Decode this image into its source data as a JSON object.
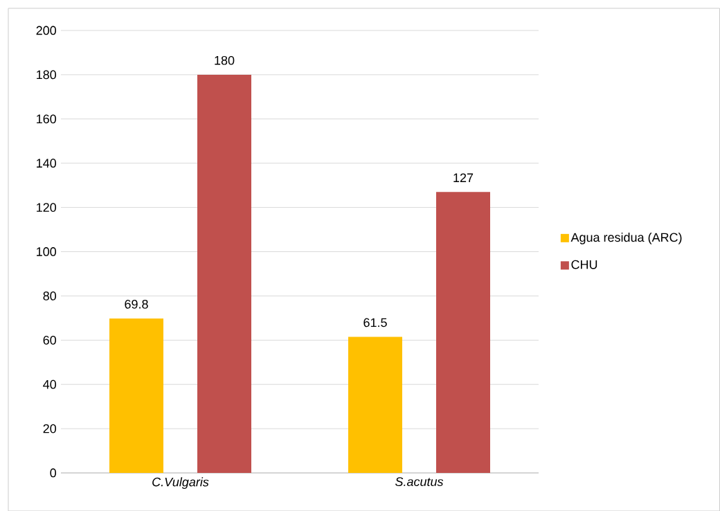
{
  "chart_data": {
    "type": "bar",
    "categories": [
      "C.Vulgaris",
      "S.acutus"
    ],
    "series": [
      {
        "name": "Agua residua (ARC)",
        "color": "#ffc000",
        "values": [
          69.8,
          61.5
        ],
        "value_labels": [
          "69.8",
          "61.5"
        ]
      },
      {
        "name": "CHU",
        "color": "#c0504d",
        "values": [
          180,
          127
        ],
        "value_labels": [
          "180",
          "127"
        ]
      }
    ],
    "ylim": [
      0,
      200
    ],
    "yticks": [
      0,
      20,
      40,
      60,
      80,
      100,
      120,
      140,
      160,
      180,
      200
    ],
    "grid": "y",
    "legend": "right"
  }
}
